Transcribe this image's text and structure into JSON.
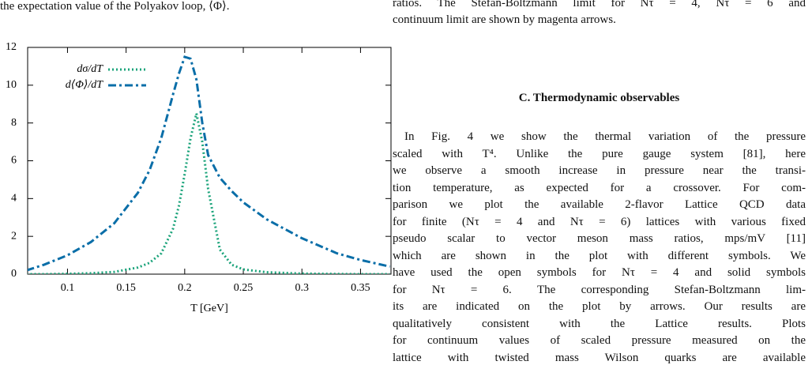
{
  "left_text": "the expectation value of the Polyakov loop, ⟨Φ⟩.",
  "right_top_lines": [
    "ratios. The Stefan-Boltzmann limit for Nτ = 4, Nτ = 6 and",
    "continuum limit are shown by magenta arrows."
  ],
  "section_heading": "C.   Thermodynamic observables",
  "paragraph_lines": [
    "In Fig. 4 we show the thermal variation of the pressure",
    "scaled with T⁴. Unlike the pure gauge system [81], here",
    "we observe a smooth increase in pressure near the transi-",
    "tion temperature, as expected for a crossover. For com-",
    "parison we plot the available 2-flavor Lattice QCD data",
    "for finite (Nτ = 4 and Nτ = 6) lattices with various fixed",
    "pseudo scalar to vector meson mass ratios, mps/mV  [11]",
    "which are shown in the plot with different symbols. We",
    "have used the open symbols for Nτ = 4 and solid symbols",
    "for Nτ = 6. The corresponding Stefan-Boltzmann lim-",
    "its are indicated on the plot by arrows. Our results are",
    "qualitatively consistent with the Lattice results. Plots",
    "for continuum values of scaled pressure measured on the",
    "lattice with twisted mass Wilson quarks are available"
  ],
  "chart_data": {
    "type": "line",
    "x_label": "T [GeV]",
    "x": [
      0.065,
      0.08,
      0.1,
      0.12,
      0.14,
      0.16,
      0.17,
      0.18,
      0.19,
      0.195,
      0.2,
      0.205,
      0.21,
      0.215,
      0.22,
      0.23,
      0.24,
      0.25,
      0.27,
      0.3,
      0.33,
      0.35,
      0.375
    ],
    "series": [
      {
        "name": "dσ/dT",
        "color": "#1aa37a",
        "dash": "dotted",
        "values": [
          0,
          0,
          0.02,
          0.05,
          0.12,
          0.35,
          0.6,
          1.1,
          2.4,
          3.6,
          5.3,
          7.2,
          8.5,
          7.0,
          4.5,
          1.3,
          0.5,
          0.25,
          0.1,
          0.03,
          0.01,
          0,
          0
        ]
      },
      {
        "name": "d⟨Φ⟩/dT",
        "color": "#0a6ea8",
        "dash": "dashdot",
        "values": [
          0.2,
          0.5,
          1.0,
          1.7,
          2.7,
          4.3,
          5.5,
          7.2,
          9.5,
          10.6,
          11.5,
          11.4,
          10.3,
          8.0,
          6.3,
          5.1,
          4.4,
          3.8,
          2.9,
          1.9,
          1.1,
          0.75,
          0.4
        ]
      }
    ],
    "xlim": [
      0.066,
      0.376
    ],
    "ylim": [
      0,
      12
    ],
    "xticks": [
      0.1,
      0.15,
      0.2,
      0.25,
      0.3,
      0.35
    ],
    "yticks": [
      0,
      2,
      4,
      6,
      8,
      10,
      12
    ],
    "legend": "upper-left"
  }
}
